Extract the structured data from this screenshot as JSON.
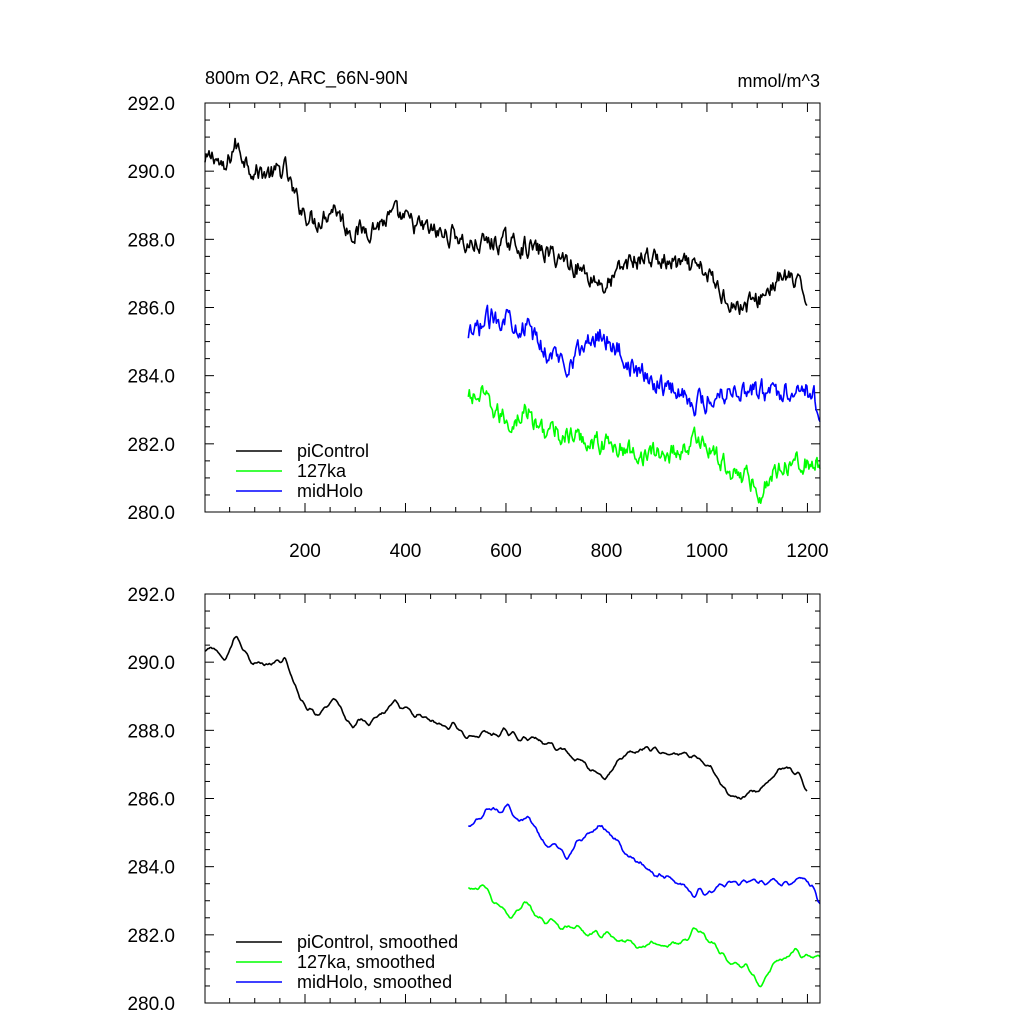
{
  "chart_data": [
    {
      "type": "line",
      "title_left": "800m O2, ARC_66N-90N",
      "title_right": "mmol/m^3",
      "xlim": [
        1,
        1225
      ],
      "ylim": [
        280.0,
        292.0
      ],
      "yticks": [
        "280.0",
        "282.0",
        "284.0",
        "286.0",
        "288.0",
        "290.0",
        "292.0"
      ],
      "xticks": [
        "200",
        "400",
        "600",
        "800",
        "1000",
        "1200"
      ],
      "legend_position": "lower-left",
      "grid": false,
      "series": [
        {
          "name": "piControl",
          "color": "#000000",
          "x_start": 1,
          "x_end": 1200,
          "anchors": [
            [
              1,
              290.2
            ],
            [
              20,
              290.5
            ],
            [
              40,
              289.9
            ],
            [
              60,
              290.8
            ],
            [
              80,
              290.4
            ],
            [
              100,
              290.0
            ],
            [
              140,
              289.9
            ],
            [
              160,
              290.1
            ],
            [
              180,
              289.2
            ],
            [
              200,
              288.8
            ],
            [
              220,
              288.5
            ],
            [
              260,
              289.0
            ],
            [
              280,
              288.4
            ],
            [
              300,
              288.2
            ],
            [
              340,
              288.4
            ],
            [
              380,
              288.7
            ],
            [
              420,
              288.4
            ],
            [
              480,
              288.1
            ],
            [
              500,
              288.2
            ],
            [
              520,
              287.8
            ],
            [
              560,
              287.9
            ],
            [
              600,
              287.9
            ],
            [
              640,
              287.8
            ],
            [
              680,
              287.6
            ],
            [
              720,
              287.4
            ],
            [
              760,
              287.0
            ],
            [
              800,
              286.6
            ],
            [
              840,
              287.3
            ],
            [
              880,
              287.5
            ],
            [
              920,
              287.3
            ],
            [
              960,
              287.2
            ],
            [
              1000,
              287.0
            ],
            [
              1020,
              286.6
            ],
            [
              1060,
              286.0
            ],
            [
              1100,
              286.2
            ],
            [
              1140,
              286.8
            ],
            [
              1160,
              286.9
            ],
            [
              1200,
              286.3
            ]
          ],
          "noise_rough": 0.45,
          "noise_smooth": 0.25
        },
        {
          "name": "127ka",
          "color": "#00ff00",
          "x_start": 525,
          "x_end": 1225,
          "anchors": [
            [
              525,
              283.3
            ],
            [
              550,
              283.4
            ],
            [
              580,
              282.9
            ],
            [
              610,
              282.6
            ],
            [
              640,
              283.0
            ],
            [
              660,
              282.5
            ],
            [
              700,
              282.3
            ],
            [
              760,
              282.1
            ],
            [
              800,
              282.0
            ],
            [
              840,
              281.8
            ],
            [
              880,
              281.7
            ],
            [
              920,
              281.7
            ],
            [
              960,
              281.9
            ],
            [
              985,
              282.2
            ],
            [
              1000,
              281.9
            ],
            [
              1040,
              281.3
            ],
            [
              1080,
              281.0
            ],
            [
              1110,
              280.6
            ],
            [
              1140,
              281.3
            ],
            [
              1180,
              281.6
            ],
            [
              1210,
              281.3
            ],
            [
              1225,
              281.4
            ]
          ],
          "noise_rough": 0.42,
          "noise_smooth": 0.24
        },
        {
          "name": "midHolo",
          "color": "#0000ff",
          "x_start": 525,
          "x_end": 1225,
          "anchors": [
            [
              525,
              285.0
            ],
            [
              560,
              285.6
            ],
            [
              600,
              285.8
            ],
            [
              640,
              285.4
            ],
            [
              680,
              284.7
            ],
            [
              720,
              284.4
            ],
            [
              760,
              284.9
            ],
            [
              790,
              285.3
            ],
            [
              820,
              284.8
            ],
            [
              860,
              284.1
            ],
            [
              900,
              283.8
            ],
            [
              940,
              283.6
            ],
            [
              980,
              283.2
            ],
            [
              1000,
              283.3
            ],
            [
              1040,
              283.6
            ],
            [
              1080,
              283.6
            ],
            [
              1120,
              283.5
            ],
            [
              1160,
              283.6
            ],
            [
              1190,
              283.8
            ],
            [
              1225,
              283.1
            ]
          ],
          "noise_rough": 0.45,
          "noise_smooth": 0.25
        }
      ]
    },
    {
      "type": "line",
      "xlim": [
        1,
        1225
      ],
      "ylim": [
        280.0,
        292.0
      ],
      "yticks": [
        "280.0",
        "282.0",
        "284.0",
        "286.0",
        "288.0",
        "290.0",
        "292.0"
      ],
      "legend_position": "lower-left",
      "grid": false,
      "series": [
        {
          "name": "piControl, smoothed",
          "color": "#000000"
        },
        {
          "name": "127ka, smoothed",
          "color": "#00ff00"
        },
        {
          "name": "midHolo, smoothed",
          "color": "#0000ff"
        }
      ]
    }
  ]
}
